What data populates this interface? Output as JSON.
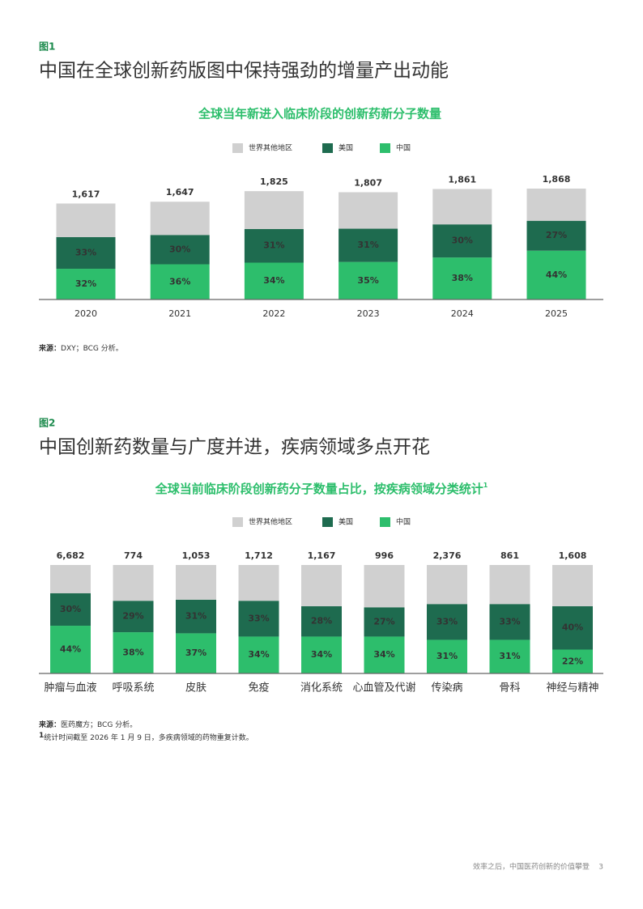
{
  "figures": [
    {
      "label": "图1",
      "heading": "中国在全球创新药版图中保持强劲的增量产出动能",
      "source_label": "来源：",
      "source": "DXY；BCG 分析。"
    },
    {
      "label": "图2",
      "heading": "中国创新药数量与广度并进，疾病领域多点开花",
      "source_label": "来源：",
      "source": "医药魔方；BCG 分析。",
      "footnote_mark": "1",
      "footnote": "统计时间截至 2026 年 1 月 9 日，多疾病领域的药物重复计数。"
    }
  ],
  "chart_data": [
    {
      "type": "stacked_bar",
      "title": "全球当年新进入临床阶段的创新药新分子数量",
      "normalized": false,
      "categories": [
        "2020",
        "2021",
        "2022",
        "2023",
        "2024",
        "2025"
      ],
      "totals": {
        "values": [
          1617,
          1647,
          1825,
          1807,
          1861,
          1868
        ],
        "value_labels": [
          "1,617",
          "1,647",
          "1,825",
          "1,807",
          "1,861",
          "1,868"
        ]
      },
      "series": [
        {
          "name": "世界其他地区",
          "color": "#d0d0d0",
          "values": [
            35,
            34,
            35,
            34,
            32,
            29
          ]
        },
        {
          "name": "美国",
          "color": "#1e6b4f",
          "values": [
            33,
            30,
            31,
            31,
            30,
            27
          ],
          "value_labels": [
            "33%",
            "30%",
            "31%",
            "31%",
            "30%",
            "27%"
          ]
        },
        {
          "name": "中国",
          "color": "#2dbe6c",
          "values": [
            32,
            36,
            34,
            35,
            38,
            44
          ],
          "value_labels": [
            "32%",
            "36%",
            "34%",
            "35%",
            "38%",
            "44%"
          ]
        }
      ]
    },
    {
      "type": "stacked_bar",
      "title": "全球当前临床阶段创新药分子数量占比，按疾病领域分类统计",
      "title_note": "1",
      "normalized": true,
      "categories": [
        "肿瘤与血液",
        "呼吸系统",
        "皮肤",
        "免疫",
        "消化系统",
        "心血管及代谢",
        "传染病",
        "骨科",
        "神经与精神"
      ],
      "totals": {
        "values": [
          6682,
          774,
          1053,
          1712,
          1167,
          996,
          2376,
          861,
          1608
        ],
        "value_labels": [
          "6,682",
          "774",
          "1,053",
          "1,712",
          "1,167",
          "996",
          "2,376",
          "861",
          "1,608"
        ]
      },
      "series": [
        {
          "name": "世界其他地区",
          "color": "#d0d0d0",
          "values": [
            26,
            33,
            32,
            33,
            38,
            39,
            36,
            36,
            38
          ]
        },
        {
          "name": "美国",
          "color": "#1e6b4f",
          "values": [
            30,
            29,
            31,
            33,
            28,
            27,
            33,
            33,
            40
          ],
          "value_labels": [
            "30%",
            "29%",
            "31%",
            "33%",
            "28%",
            "27%",
            "33%",
            "33%",
            "40%"
          ]
        },
        {
          "name": "中国",
          "color": "#2dbe6c",
          "values": [
            44,
            38,
            37,
            34,
            34,
            34,
            31,
            31,
            22
          ],
          "value_labels": [
            "44%",
            "38%",
            "37%",
            "34%",
            "34%",
            "34%",
            "31%",
            "31%",
            "22%"
          ]
        }
      ]
    }
  ],
  "footer": {
    "text": "效率之后，中国医药创新的价值攀登",
    "page": 3
  }
}
